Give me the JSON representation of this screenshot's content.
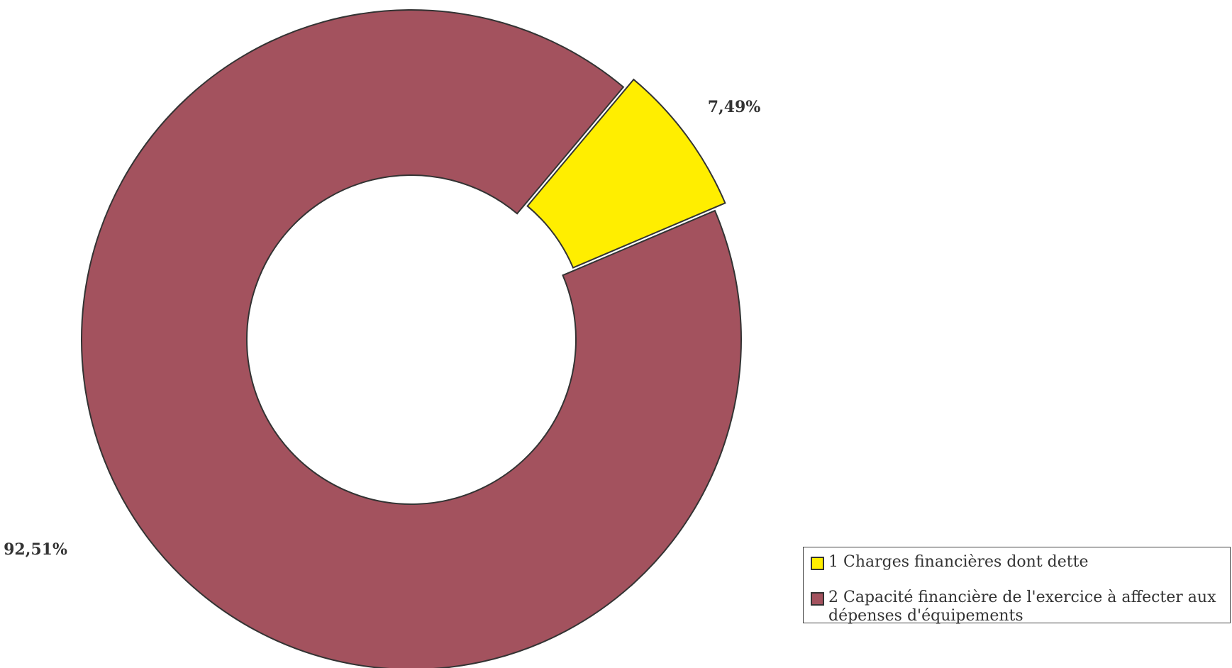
{
  "chart_data": {
    "type": "pie",
    "variant": "donut",
    "start_angle_deg": 40,
    "direction": "clockwise",
    "exploded_slice": 0,
    "legend_position": "bottom-right",
    "slices": [
      {
        "label": "1 Charges financières dont dette",
        "value": 7.49,
        "data_label": "7,49%",
        "color": "#FFEE00"
      },
      {
        "label": "2 Capacité financière de l'exercice à affecter aux dépenses d'équipements",
        "value": 92.51,
        "data_label": "92,51%",
        "color": "#A3525E"
      }
    ]
  }
}
